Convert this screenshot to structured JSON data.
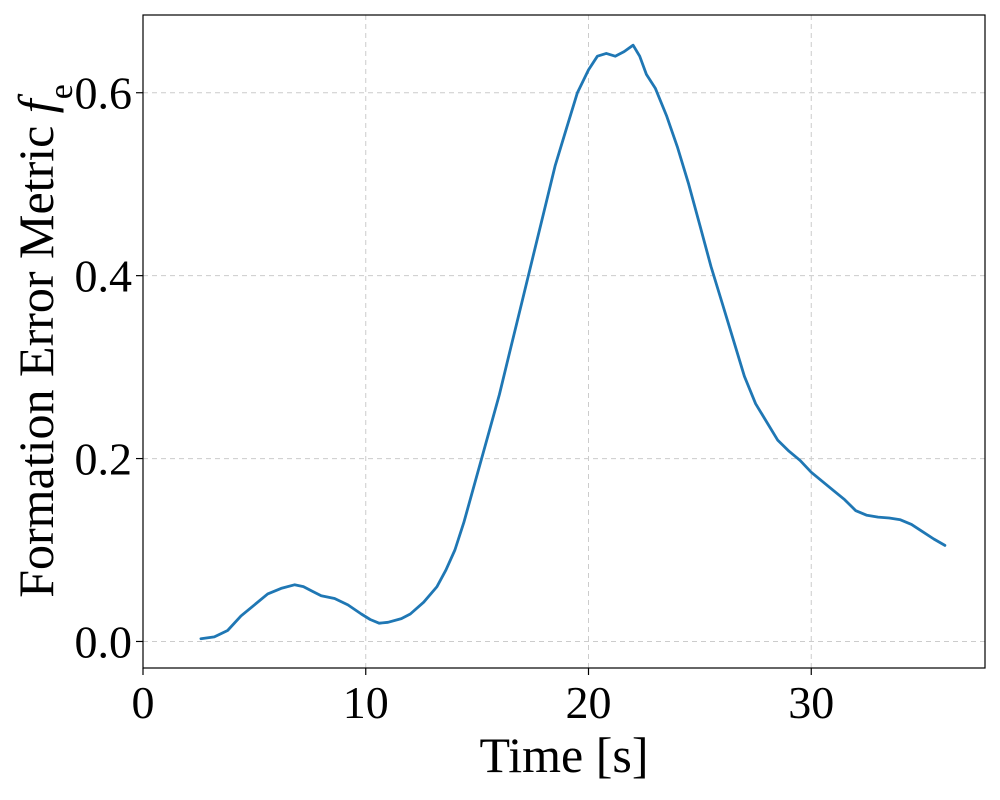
{
  "chart_data": {
    "type": "line",
    "title": "",
    "xlabel": "Time [s]",
    "ylabel_prefix": "Formation Error Metric ",
    "ylabel_symbol": "f",
    "ylabel_subscript": "e",
    "xlim": [
      0,
      37.8
    ],
    "ylim": [
      -0.029,
      0.685
    ],
    "xticks": [
      0,
      10,
      20,
      30
    ],
    "xtick_labels": [
      "0",
      "10",
      "20",
      "30"
    ],
    "yticks": [
      0.0,
      0.2,
      0.4,
      0.6
    ],
    "ytick_labels": [
      "0.0",
      "0.2",
      "0.4",
      "0.6"
    ],
    "grid": true,
    "line_color": "#1f77b4",
    "series": [
      {
        "x": [
          2.6,
          3.2,
          3.8,
          4.4,
          5.0,
          5.6,
          6.2,
          6.8,
          7.2,
          7.6,
          8.0,
          8.6,
          9.2,
          9.8,
          10.2,
          10.6,
          11.0,
          11.6,
          12.0,
          12.6,
          13.2,
          13.6,
          14.0,
          14.4,
          14.8,
          15.2,
          15.6,
          16.0,
          16.5,
          17.0,
          17.5,
          18.0,
          18.5,
          19.0,
          19.5,
          20.0,
          20.4,
          20.8,
          21.2,
          21.6,
          22.0,
          22.3,
          22.6,
          23.0,
          23.5,
          24.0,
          24.5,
          25.0,
          25.5,
          26.0,
          26.5,
          27.0,
          27.5,
          28.0,
          28.5,
          29.0,
          29.5,
          30.0,
          30.5,
          31.0,
          31.5,
          32.0,
          32.5,
          33.0,
          33.5,
          34.0,
          34.5,
          35.0,
          35.5,
          36.0
        ],
        "y": [
          0.003,
          0.005,
          0.012,
          0.028,
          0.04,
          0.052,
          0.058,
          0.062,
          0.06,
          0.055,
          0.05,
          0.047,
          0.04,
          0.03,
          0.024,
          0.02,
          0.021,
          0.025,
          0.03,
          0.043,
          0.06,
          0.078,
          0.1,
          0.13,
          0.165,
          0.2,
          0.235,
          0.27,
          0.32,
          0.37,
          0.42,
          0.47,
          0.52,
          0.56,
          0.6,
          0.625,
          0.64,
          0.643,
          0.64,
          0.645,
          0.652,
          0.64,
          0.62,
          0.605,
          0.575,
          0.54,
          0.5,
          0.455,
          0.41,
          0.37,
          0.33,
          0.29,
          0.26,
          0.24,
          0.22,
          0.208,
          0.198,
          0.185,
          0.175,
          0.165,
          0.155,
          0.143,
          0.138,
          0.136,
          0.135,
          0.133,
          0.128,
          0.12,
          0.112,
          0.105
        ]
      }
    ]
  }
}
